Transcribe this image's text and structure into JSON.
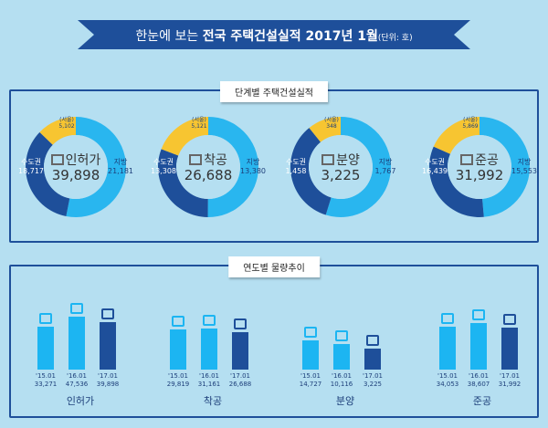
{
  "title": {
    "prefix": "한눈에 보는 ",
    "bold": "전국 주택건설실적 2017년 1월",
    "unit": "(단위: 호)"
  },
  "colors": {
    "local": "#29b6ef",
    "capital": "#1e4f9a",
    "seoul": "#f7c531",
    "bar_past": "#1cb5f2",
    "bar_current": "#1e4f9a"
  },
  "section1": {
    "label": "단계별 주택건설실적"
  },
  "section2": {
    "label": "연도별 물량추이"
  },
  "chart_data": [
    {
      "type": "pie",
      "title": "인허가",
      "icon": "document-pen-icon",
      "total": "39,898",
      "slices": [
        {
          "name": "지방",
          "value": 21181,
          "label": "21,181"
        },
        {
          "name": "수도권",
          "value": 18717,
          "label": "18,717"
        },
        {
          "name": "(서울)",
          "value": 5102,
          "label": "5,102"
        }
      ]
    },
    {
      "type": "pie",
      "title": "착공",
      "icon": "crane-icon",
      "total": "26,688",
      "slices": [
        {
          "name": "지방",
          "value": 13380,
          "label": "13,380"
        },
        {
          "name": "수도권",
          "value": 13308,
          "label": "13,308"
        },
        {
          "name": "(서울)",
          "value": 5121,
          "label": "5,121"
        }
      ]
    },
    {
      "type": "pie",
      "title": "분양",
      "icon": "sale-board-icon",
      "total": "3,225",
      "slices": [
        {
          "name": "지방",
          "value": 1767,
          "label": "1,767"
        },
        {
          "name": "수도권",
          "value": 1458,
          "label": "1,458"
        },
        {
          "name": "(서울)",
          "value": 348,
          "label": "348"
        }
      ]
    },
    {
      "type": "pie",
      "title": "준공",
      "icon": "buildings-icon",
      "total": "31,992",
      "slices": [
        {
          "name": "지방",
          "value": 15553,
          "label": "15,553"
        },
        {
          "name": "수도권",
          "value": 16439,
          "label": "16,439"
        },
        {
          "name": "(서울)",
          "value": 5869,
          "label": "5,869"
        }
      ]
    },
    {
      "type": "bar",
      "title": "인허가",
      "categories": [
        "'15.01",
        "'16.01",
        "'17.01"
      ],
      "values": [
        33271,
        47536,
        39898
      ],
      "labels": [
        "33,271",
        "47,536",
        "39,898"
      ]
    },
    {
      "type": "bar",
      "title": "착공",
      "categories": [
        "'15.01",
        "'16.01",
        "'17.01"
      ],
      "values": [
        29819,
        31161,
        26688
      ],
      "labels": [
        "29,819",
        "31,161",
        "26,688"
      ]
    },
    {
      "type": "bar",
      "title": "분양",
      "categories": [
        "'15.01",
        "'16.01",
        "'17.01"
      ],
      "values": [
        14727,
        10116,
        3225
      ],
      "labels": [
        "14,727",
        "10,116",
        "3,225"
      ]
    },
    {
      "type": "bar",
      "title": "준공",
      "categories": [
        "'15.01",
        "'16.01",
        "'17.01"
      ],
      "values": [
        34053,
        38607,
        31992
      ],
      "labels": [
        "34,053",
        "38,607",
        "31,992"
      ]
    }
  ]
}
